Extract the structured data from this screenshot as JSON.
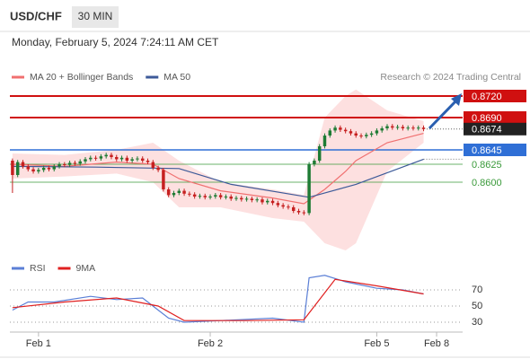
{
  "header": {
    "symbol": "USD/CHF",
    "interval": "30 MIN",
    "datetime": "Monday, February 5, 2024 7:24:11 AM CET"
  },
  "chart_data": [
    {
      "type": "candlestick",
      "source": "Research © 2024 Trading Central",
      "xlim": [
        -0.5,
        86.5
      ],
      "ylim": [
        0.85,
        0.8735
      ],
      "up_color": "#1e7b34",
      "down_color": "#c62020",
      "ohlc": [
        [
          0.863,
          0.8633,
          0.8585,
          0.861
        ],
        [
          0.861,
          0.8631,
          0.8607,
          0.8628
        ],
        [
          0.8628,
          0.8631,
          0.8619,
          0.8622
        ],
        [
          0.8622,
          0.8625,
          0.8615,
          0.8618
        ],
        [
          0.8618,
          0.8621,
          0.8612,
          0.8615
        ],
        [
          0.8615,
          0.862,
          0.8612,
          0.8617
        ],
        [
          0.8617,
          0.8623,
          0.8614,
          0.862
        ],
        [
          0.862,
          0.8623,
          0.8615,
          0.8618
        ],
        [
          0.8618,
          0.8625,
          0.8615,
          0.8622
        ],
        [
          0.8622,
          0.8628,
          0.8619,
          0.8625
        ],
        [
          0.8625,
          0.8628,
          0.8621,
          0.8624
        ],
        [
          0.8624,
          0.863,
          0.8621,
          0.8627
        ],
        [
          0.8627,
          0.863,
          0.8623,
          0.8626
        ],
        [
          0.8626,
          0.8632,
          0.8623,
          0.8629
        ],
        [
          0.8629,
          0.8635,
          0.8626,
          0.8632
        ],
        [
          0.8632,
          0.8637,
          0.8629,
          0.8634
        ],
        [
          0.8634,
          0.8637,
          0.863,
          0.8633
        ],
        [
          0.8633,
          0.8639,
          0.863,
          0.8636
        ],
        [
          0.8636,
          0.8641,
          0.8633,
          0.8638
        ],
        [
          0.8638,
          0.8641,
          0.8632,
          0.8635
        ],
        [
          0.8635,
          0.8638,
          0.8629,
          0.8632
        ],
        [
          0.8632,
          0.8637,
          0.8629,
          0.8634
        ],
        [
          0.8634,
          0.8637,
          0.8627,
          0.863
        ],
        [
          0.863,
          0.8635,
          0.8627,
          0.8632
        ],
        [
          0.8632,
          0.8636,
          0.8629,
          0.8633
        ],
        [
          0.8633,
          0.8636,
          0.8627,
          0.863
        ],
        [
          0.863,
          0.8633,
          0.8625,
          0.8628
        ],
        [
          0.8628,
          0.8631,
          0.8617,
          0.862
        ],
        [
          0.862,
          0.8623,
          0.8614,
          0.8617
        ],
        [
          0.8617,
          0.862,
          0.8587,
          0.859
        ],
        [
          0.859,
          0.8593,
          0.8579,
          0.8582
        ],
        [
          0.8582,
          0.8588,
          0.8579,
          0.8585
        ],
        [
          0.8585,
          0.8591,
          0.8582,
          0.8588
        ],
        [
          0.8588,
          0.8591,
          0.8581,
          0.8584
        ],
        [
          0.8584,
          0.8587,
          0.858,
          0.8583
        ],
        [
          0.8583,
          0.8586,
          0.8577,
          0.858
        ],
        [
          0.858,
          0.8584,
          0.8577,
          0.8581
        ],
        [
          0.8581,
          0.8584,
          0.8576,
          0.8579
        ],
        [
          0.8579,
          0.8583,
          0.8576,
          0.858
        ],
        [
          0.858,
          0.8585,
          0.8577,
          0.8582
        ],
        [
          0.8582,
          0.8585,
          0.8576,
          0.8579
        ],
        [
          0.8579,
          0.8583,
          0.8576,
          0.858
        ],
        [
          0.858,
          0.8583,
          0.8574,
          0.8577
        ],
        [
          0.8577,
          0.8581,
          0.8574,
          0.8578
        ],
        [
          0.8578,
          0.8581,
          0.8573,
          0.8576
        ],
        [
          0.8576,
          0.858,
          0.8573,
          0.8577
        ],
        [
          0.8577,
          0.858,
          0.8572,
          0.8575
        ],
        [
          0.8575,
          0.8579,
          0.8572,
          0.8576
        ],
        [
          0.8576,
          0.8579,
          0.8569,
          0.8572
        ],
        [
          0.8572,
          0.8577,
          0.8569,
          0.8574
        ],
        [
          0.8574,
          0.8577,
          0.8568,
          0.8571
        ],
        [
          0.8571,
          0.8574,
          0.8565,
          0.8568
        ],
        [
          0.8568,
          0.8571,
          0.8563,
          0.8566
        ],
        [
          0.8566,
          0.8569,
          0.8562,
          0.8565
        ],
        [
          0.8565,
          0.8568,
          0.8557,
          0.856
        ],
        [
          0.856,
          0.8563,
          0.8555,
          0.8558
        ],
        [
          0.8558,
          0.8561,
          0.8554,
          0.8557
        ],
        [
          0.8557,
          0.8628,
          0.8554,
          0.8625
        ],
        [
          0.8625,
          0.8633,
          0.8622,
          0.863
        ],
        [
          0.863,
          0.8653,
          0.8627,
          0.865
        ],
        [
          0.865,
          0.8668,
          0.8647,
          0.8665
        ],
        [
          0.8665,
          0.8675,
          0.8662,
          0.8672
        ],
        [
          0.8672,
          0.8679,
          0.8669,
          0.8676
        ],
        [
          0.8676,
          0.8679,
          0.867,
          0.8673
        ],
        [
          0.8673,
          0.8676,
          0.8668,
          0.8671
        ],
        [
          0.8671,
          0.8674,
          0.8665,
          0.8668
        ],
        [
          0.8668,
          0.8671,
          0.8662,
          0.8665
        ],
        [
          0.8665,
          0.8668,
          0.8661,
          0.8664
        ],
        [
          0.8664,
          0.8669,
          0.8661,
          0.8666
        ],
        [
          0.8666,
          0.8671,
          0.8663,
          0.8668
        ],
        [
          0.8668,
          0.8675,
          0.8665,
          0.8672
        ],
        [
          0.8672,
          0.8678,
          0.8669,
          0.8675
        ],
        [
          0.8675,
          0.8681,
          0.8672,
          0.8678
        ],
        [
          0.8678,
          0.8681,
          0.8673,
          0.8676
        ],
        [
          0.8676,
          0.868,
          0.8673,
          0.8677
        ],
        [
          0.8677,
          0.868,
          0.8672,
          0.8675
        ],
        [
          0.8675,
          0.8679,
          0.8672,
          0.8676
        ],
        [
          0.8676,
          0.8679,
          0.8672,
          0.8675
        ],
        [
          0.8675,
          0.8679,
          0.8672,
          0.8676
        ],
        [
          0.8676,
          0.8679,
          0.8671,
          0.8674
        ]
      ],
      "overlays": [
        {
          "name": "MA 20 + Bollinger Bands",
          "color": "#f07070",
          "band_color": "#fde0e0",
          "x": [
            0,
            10,
            20,
            27,
            32,
            40,
            50,
            56,
            60,
            64,
            66,
            72,
            79
          ],
          "values": [
            0.8625,
            0.8622,
            0.8628,
            0.8625,
            0.8605,
            0.8588,
            0.8578,
            0.857,
            0.859,
            0.8615,
            0.863,
            0.8655,
            0.8668
          ],
          "upper": [
            0.864,
            0.8638,
            0.8645,
            0.8655,
            0.863,
            0.86,
            0.859,
            0.8582,
            0.869,
            0.872,
            0.8729,
            0.87,
            0.8685
          ],
          "lower": [
            0.8605,
            0.8608,
            0.8612,
            0.86,
            0.8565,
            0.8565,
            0.855,
            0.8545,
            0.8515,
            0.8505,
            0.8515,
            0.8615,
            0.8655
          ]
        },
        {
          "name": "MA 50",
          "color": "#3d5a99",
          "x": [
            0,
            16,
            32,
            42,
            57,
            66,
            79
          ],
          "values": [
            0.8622,
            0.8621,
            0.8619,
            0.8597,
            0.8579,
            0.8597,
            0.8632
          ]
        }
      ],
      "levels": [
        {
          "value": 0.872,
          "label": "0.8720",
          "style": "resistance",
          "color": "#d01010"
        },
        {
          "value": 0.869,
          "label": "0.8690",
          "style": "resistance",
          "color": "#d01010"
        },
        {
          "value": 0.8674,
          "style": "current",
          "color": "#222222"
        },
        {
          "value": 0.8645,
          "style": "pivot",
          "color": "#2f6fd6"
        },
        {
          "value": 0.8625,
          "style": "support",
          "color": "#3a9a3a"
        },
        {
          "value": 0.86,
          "label": "0.8600",
          "style": "support",
          "color": "#3a9a3a"
        }
      ]
    },
    {
      "type": "line",
      "xlim": [
        -0.5,
        86.5
      ],
      "ylim": [
        20,
        90
      ],
      "yticks": [
        70,
        50,
        30
      ],
      "xticks": [
        {
          "value": 5,
          "label": "Feb 1"
        },
        {
          "value": 38,
          "label": "Feb 2"
        },
        {
          "value": 70,
          "label": "Feb 5"
        },
        {
          "value": 81.5,
          "label": "Feb 8"
        }
      ],
      "series": [
        {
          "name": "RSI",
          "color": "#5b7fd6",
          "x": [
            0,
            3,
            8,
            15,
            20,
            25,
            28,
            30,
            33,
            40,
            50,
            56,
            57,
            60,
            64,
            70,
            75,
            79
          ],
          "values": [
            45,
            55,
            55,
            62,
            58,
            60,
            45,
            35,
            30,
            32,
            35,
            30,
            85,
            88,
            80,
            72,
            70,
            65
          ]
        },
        {
          "name": "9MA",
          "color": "#e02020",
          "x": [
            0,
            10,
            20,
            28,
            33,
            45,
            56,
            62,
            70,
            79
          ],
          "values": [
            48,
            55,
            60,
            50,
            32,
            32,
            33,
            83,
            75,
            65
          ]
        }
      ]
    }
  ]
}
